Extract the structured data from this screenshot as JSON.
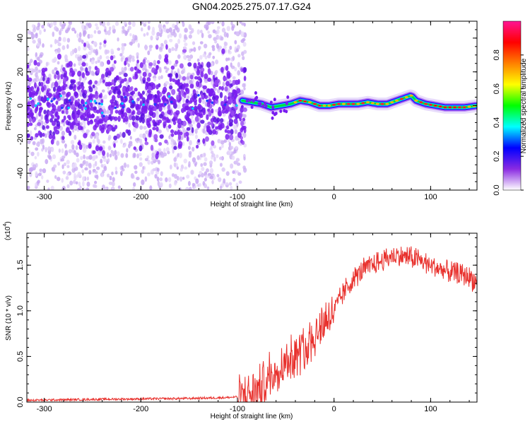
{
  "title": "GN04.2025.275.07.17.G24",
  "chart_data": [
    {
      "type": "heatmap",
      "name": "spectrogram",
      "xlabel": "Height of straight line (km)",
      "ylabel": "Frequency (Hz)",
      "xlim": [
        -318,
        148
      ],
      "ylim": [
        -50,
        50
      ],
      "xticks": [
        -300,
        -200,
        -100,
        0,
        100
      ],
      "yticks": [
        -40,
        -20,
        0,
        20,
        40
      ],
      "colorbar": {
        "label": "Normalized spectral amplitude",
        "range": [
          0.0,
          1.0
        ],
        "ticks": [
          0.0,
          0.2,
          0.4,
          0.6,
          0.8
        ],
        "tick_labels": [
          "0.0",
          "0.2",
          "0.4",
          "0.6",
          "0.8"
        ],
        "colors": [
          "#ffffff",
          "#8a2be2",
          "#0000ff",
          "#00ffff",
          "#00ff00",
          "#ffff00",
          "#ff8000",
          "#ff0000",
          "#ff1493"
        ]
      },
      "ridge": {
        "x": [
          -95,
          -85,
          -75,
          -65,
          -55,
          -45,
          -35,
          -25,
          -15,
          -5,
          5,
          15,
          25,
          35,
          45,
          55,
          65,
          75,
          80,
          85,
          95,
          105,
          115,
          125,
          135,
          148
        ],
        "y": [
          3,
          2,
          1,
          -1,
          0,
          1,
          3,
          2,
          0,
          0,
          1,
          1,
          1,
          2,
          1,
          1,
          3,
          5,
          6,
          3,
          1,
          0,
          -1,
          -1,
          -1,
          0
        ]
      },
      "noisy_region": {
        "x_range": [
          -318,
          -92
        ],
        "center_y": 2
      }
    },
    {
      "type": "line",
      "name": "snr",
      "xlabel": "Height of straight line (km)",
      "ylabel": "SNR (10 * v/v)",
      "scale_label": "(x10",
      "scale_exponent": "4",
      "scale_close": ")",
      "xlim": [
        -318,
        148
      ],
      "ylim": [
        0.0,
        1.85
      ],
      "xticks": [
        -300,
        -200,
        -100,
        0,
        100
      ],
      "yticks": [
        0.0,
        0.5,
        1.0,
        1.5
      ],
      "ytick_labels": [
        "0.0",
        "0.5",
        "1.0",
        "1.5"
      ],
      "color": "#e8302c",
      "envelope": {
        "x": [
          -318,
          -250,
          -150,
          -110,
          -95,
          -80,
          -70,
          -60,
          -50,
          -40,
          -30,
          -20,
          -10,
          0,
          10,
          20,
          30,
          40,
          50,
          60,
          70,
          80,
          90,
          100,
          110,
          120,
          130,
          140,
          148
        ],
        "y": [
          0.02,
          0.03,
          0.04,
          0.05,
          0.06,
          0.12,
          0.25,
          0.35,
          0.45,
          0.5,
          0.6,
          0.75,
          0.9,
          1.0,
          1.2,
          1.35,
          1.45,
          1.5,
          1.55,
          1.6,
          1.6,
          1.58,
          1.55,
          1.5,
          1.45,
          1.42,
          1.4,
          1.38,
          1.3
        ]
      }
    }
  ],
  "ticks_x": [
    "-300",
    "-200",
    "-100",
    "0",
    "100"
  ],
  "ticks_y1": [
    "-40",
    "-20",
    "0",
    "20",
    "40"
  ]
}
